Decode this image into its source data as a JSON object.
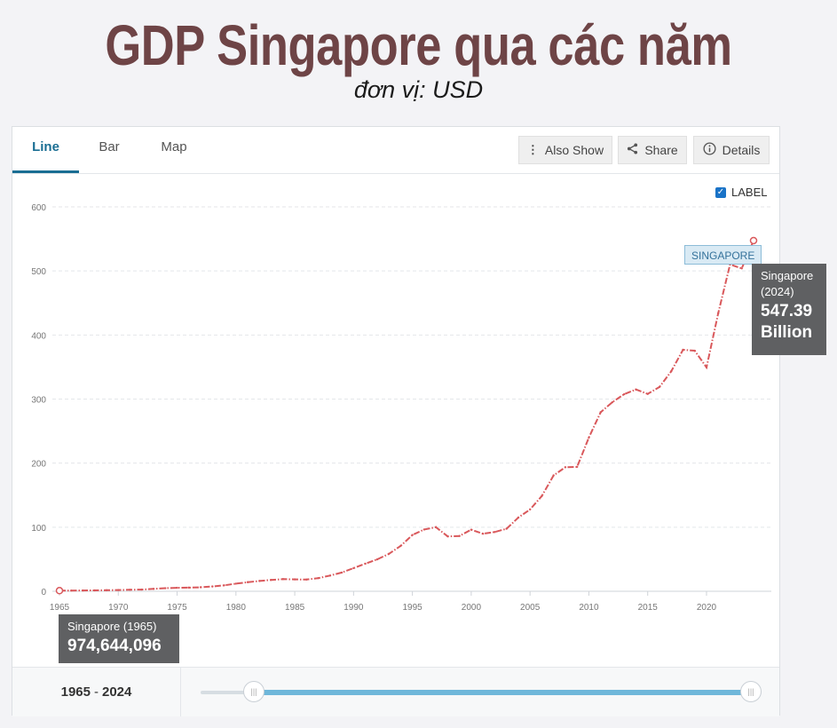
{
  "headline": "GDP Singapore qua các năm",
  "unit": "đơn vị: USD",
  "tabs": [
    {
      "label": "Line",
      "active": true
    },
    {
      "label": "Bar",
      "active": false
    },
    {
      "label": "Map",
      "active": false
    }
  ],
  "toolbar": {
    "also_show": "Also Show",
    "share": "Share",
    "details": "Details"
  },
  "label_toggle": {
    "text": "LABEL",
    "checked": true
  },
  "series_tag": "SINGAPORE",
  "tooltip_end": {
    "name": "Singapore",
    "year": "(2024)",
    "value": "547.39",
    "unit": "Billion"
  },
  "tooltip_start": {
    "name": "Singapore (1965)",
    "value": "974,644,096"
  },
  "range": {
    "from": "1965",
    "to": "2024",
    "separator": "-"
  },
  "colors": {
    "line": "#d9585b",
    "accent": "#1a6e93",
    "slider": "#6fb7da"
  },
  "chart_data": {
    "type": "line",
    "x_ticks": [
      1965,
      1970,
      1975,
      1980,
      1985,
      1990,
      1995,
      2000,
      2005,
      2010,
      2015,
      2020
    ],
    "y_ticks": [
      0,
      100,
      200,
      300,
      400,
      500,
      600
    ],
    "ylim": [
      0,
      600
    ],
    "xlim": [
      1965,
      2024
    ],
    "grid": true,
    "series": [
      {
        "name": "Singapore",
        "x": [
          1965,
          1966,
          1967,
          1968,
          1969,
          1970,
          1971,
          1972,
          1973,
          1974,
          1975,
          1976,
          1977,
          1978,
          1979,
          1980,
          1981,
          1982,
          1983,
          1984,
          1985,
          1986,
          1987,
          1988,
          1989,
          1990,
          1991,
          1992,
          1993,
          1994,
          1995,
          1996,
          1997,
          1998,
          1999,
          2000,
          2001,
          2002,
          2003,
          2004,
          2005,
          2006,
          2007,
          2008,
          2009,
          2010,
          2011,
          2012,
          2013,
          2014,
          2015,
          2016,
          2017,
          2018,
          2019,
          2020,
          2021,
          2022,
          2023,
          2024
        ],
        "values": [
          0.97,
          1.1,
          1.2,
          1.4,
          1.6,
          1.9,
          2.3,
          2.7,
          3.7,
          4.8,
          5.4,
          5.7,
          6.3,
          7.5,
          9.3,
          11.9,
          14.2,
          16.1,
          17.8,
          19.0,
          18.6,
          18.3,
          20.5,
          24.5,
          29.2,
          36.1,
          43.1,
          49.7,
          58.4,
          70.8,
          87.9,
          96.4,
          100.1,
          85.7,
          86.3,
          96.1,
          89.8,
          92.5,
          97.6,
          115.0,
          127.8,
          148.6,
          180.9,
          193.6,
          194.2,
          239.8,
          279.4,
          295.1,
          307.6,
          314.9,
          308.0,
          318.8,
          343.3,
          376.9,
          375.5,
          349.5,
          434.1,
          510.0,
          504.0,
          547.39
        ]
      }
    ]
  }
}
